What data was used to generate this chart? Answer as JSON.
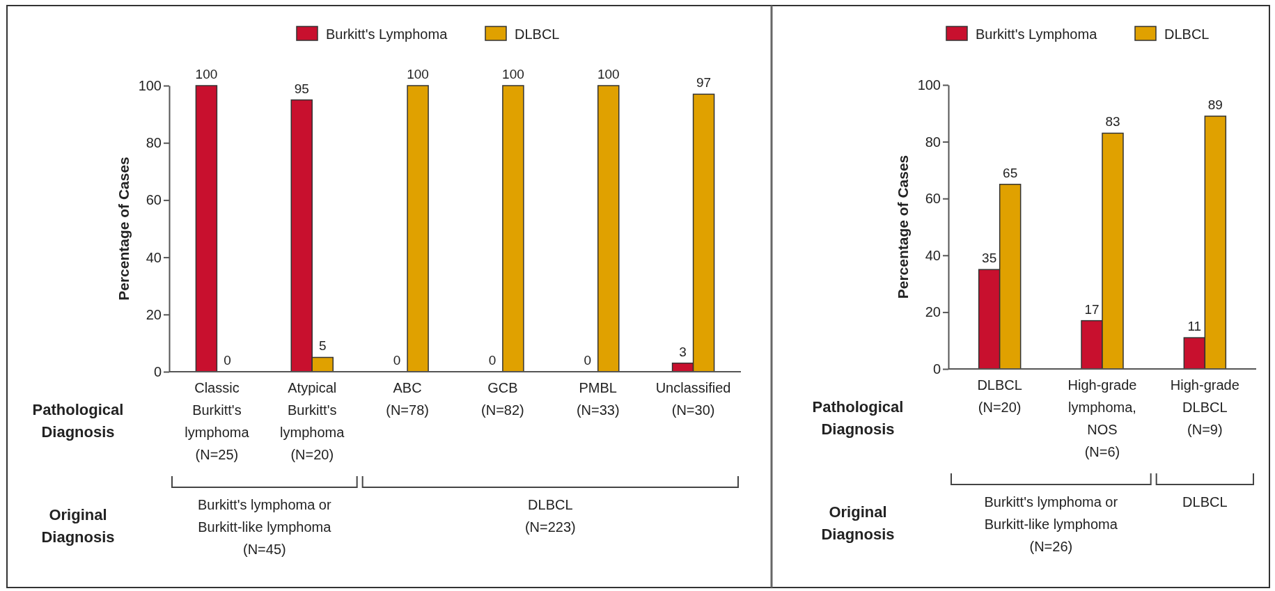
{
  "chart_data": [
    {
      "type": "bar",
      "categories": [
        "Classic\nBurkitt's\nlymphoma\n(N=25)",
        "Atypical\nBurkitt's\nlymphoma\n(N=20)",
        "ABC\n(N=78)",
        "GCB\n(N=82)",
        "PMBL\n(N=33)",
        "Unclassified\n(N=30)"
      ],
      "series": [
        {
          "name": "Burkitt's Lymphoma",
          "color": "#c8102e",
          "values": [
            100,
            95,
            0,
            0,
            0,
            3
          ]
        },
        {
          "name": "DLBCL",
          "color": "#e0a100",
          "values": [
            0,
            5,
            100,
            100,
            100,
            97
          ]
        }
      ],
      "ylabel": "Percentage of Cases",
      "ylim": [
        0,
        100
      ],
      "yticks": [
        0,
        20,
        40,
        60,
        80,
        100
      ],
      "data_labels": true,
      "legend": "top",
      "grid": false,
      "annotations": [
        "Pathological\nDiagnosis",
        "Original\nDiagnosis",
        "Burkitt's lymphoma or\nBurkitt-like lymphoma\n(N=45)",
        "DLBCL\n(N=223)"
      ]
    },
    {
      "type": "bar",
      "categories": [
        "DLBCL\n(N=20)",
        "High-grade\nlymphoma,\nNOS\n(N=6)",
        "High-grade\nDLBCL\n(N=9)"
      ],
      "series": [
        {
          "name": "Burkitt's Lymphoma",
          "color": "#c8102e",
          "values": [
            35,
            17,
            11
          ]
        },
        {
          "name": "DLBCL",
          "color": "#e0a100",
          "values": [
            65,
            83,
            89
          ]
        }
      ],
      "ylabel": "Percentage of Cases",
      "ylim": [
        0,
        100
      ],
      "yticks": [
        0,
        20,
        40,
        60,
        80,
        100
      ],
      "data_labels": true,
      "legend": "top",
      "grid": false,
      "annotations": [
        "Pathological\nDiagnosis",
        "Original\nDiagnosis",
        "Burkitt's lymphoma or\nBurkitt-like lymphoma\n(N=26)",
        "DLBCL"
      ]
    }
  ]
}
